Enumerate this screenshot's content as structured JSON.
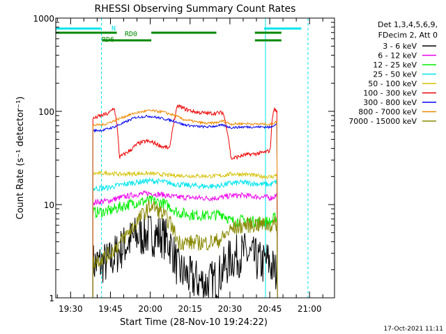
{
  "chart_data": {
    "type": "line",
    "title": "RHESSI Observing Summary Count Rates",
    "xlabel": "Start Time (28-Nov-10 19:24:22)",
    "ylabel": "Count Rate (s⁻¹ detector⁻¹)",
    "x_unit": "minutes after 19:24:22",
    "xlim": [
      0,
      105
    ],
    "ylim": [
      1,
      1000
    ],
    "yscale": "log",
    "x_ticks": [
      {
        "value": 5.6,
        "label": "19:30"
      },
      {
        "value": 20.6,
        "label": "19:45"
      },
      {
        "value": 35.6,
        "label": "20:00"
      },
      {
        "value": 50.6,
        "label": "20:15"
      },
      {
        "value": 65.6,
        "label": "20:30"
      },
      {
        "value": 80.6,
        "label": "20:45"
      },
      {
        "value": 95.6,
        "label": "21:00"
      }
    ],
    "y_ticks": [
      {
        "value": 1,
        "label": "1"
      },
      {
        "value": 10,
        "label": "10"
      },
      {
        "value": 100,
        "label": "100"
      },
      {
        "value": 1000,
        "label": "1000"
      }
    ],
    "legend_header": [
      "Det 1,3,4,5,6,9,",
      "FDecim 2, Att 0"
    ],
    "legend_placement": "right",
    "flags": [
      {
        "label": "N",
        "segments": [
          [
            0,
            17
          ],
          [
            78.5,
            92.5
          ]
        ],
        "level": 0,
        "color": "#00e5ee"
      },
      {
        "label": "RD0",
        "segments": [
          [
            0,
            23
          ],
          [
            36,
            60.5
          ],
          [
            75,
            85
          ]
        ],
        "level": 1,
        "color": "#008800"
      },
      {
        "label": "RD6",
        "segments": [
          [
            17.5,
            36
          ],
          [
            75,
            85
          ]
        ],
        "level": 2,
        "color": "#008800"
      }
    ],
    "vlines": [
      {
        "x": 0,
        "style": "solid",
        "color": "#00e5ee"
      },
      {
        "x": 17.2,
        "style": "dashed",
        "color": "#00e5ee"
      },
      {
        "x": 79.0,
        "style": "solid",
        "color": "#00e5ee"
      },
      {
        "x": 95.0,
        "style": "dashed",
        "color": "#00e5ee"
      }
    ],
    "series": [
      {
        "name": "3 - 6 keV",
        "color": "#000000",
        "points": [
          [
            14,
            2.3
          ],
          [
            20,
            2.4
          ],
          [
            24,
            3.2
          ],
          [
            30,
            4.5
          ],
          [
            35,
            4.8
          ],
          [
            40,
            4.6
          ],
          [
            43,
            3.8
          ],
          [
            46,
            2.0
          ],
          [
            51,
            1.6
          ],
          [
            57,
            1.4
          ],
          [
            61,
            1.6
          ],
          [
            63,
            2.0
          ],
          [
            66,
            2.6
          ],
          [
            71,
            3.0
          ],
          [
            75,
            2.6
          ],
          [
            78,
            2.3
          ],
          [
            79.5,
            2.5
          ],
          [
            80.8,
            2.3
          ],
          [
            82,
            2.0
          ],
          [
            83.5,
            1.8
          ]
        ]
      },
      {
        "name": "6 - 12 keV",
        "color": "#ee00ee",
        "points": [
          [
            14,
            10.5
          ],
          [
            20,
            11.0
          ],
          [
            24,
            11.8
          ],
          [
            30,
            12.8
          ],
          [
            35,
            13.2
          ],
          [
            40,
            12.8
          ],
          [
            43,
            12.3
          ],
          [
            46,
            12.0
          ],
          [
            51,
            11.9
          ],
          [
            57,
            11.7
          ],
          [
            61,
            11.8
          ],
          [
            63,
            12.0
          ],
          [
            66,
            12.5
          ],
          [
            71,
            12.5
          ],
          [
            75,
            12.2
          ],
          [
            78,
            12.0
          ],
          [
            79.5,
            12.0
          ],
          [
            80.8,
            11.8
          ],
          [
            82,
            12.0
          ],
          [
            83.5,
            13.0
          ]
        ]
      },
      {
        "name": "12 - 25 keV",
        "color": "#00ee00",
        "points": [
          [
            14,
            8.2
          ],
          [
            20,
            8.5
          ],
          [
            24,
            9.4
          ],
          [
            30,
            10.5
          ],
          [
            35,
            11.0
          ],
          [
            40,
            10.5
          ],
          [
            43,
            9.5
          ],
          [
            46,
            8.2
          ],
          [
            51,
            7.8
          ],
          [
            57,
            7.6
          ],
          [
            61,
            7.8
          ],
          [
            63,
            8.0
          ],
          [
            66,
            6.6
          ],
          [
            71,
            6.8
          ],
          [
            75,
            6.6
          ],
          [
            78,
            6.5
          ],
          [
            79.5,
            6.6
          ],
          [
            80.8,
            6.4
          ],
          [
            82,
            7.0
          ],
          [
            83.5,
            7.5
          ]
        ]
      },
      {
        "name": "25 - 50 keV",
        "color": "#00e5ee",
        "points": [
          [
            14,
            14.8
          ],
          [
            20,
            15.2
          ],
          [
            24,
            16.2
          ],
          [
            30,
            17.3
          ],
          [
            35,
            18.0
          ],
          [
            40,
            17.6
          ],
          [
            43,
            17.0
          ],
          [
            46,
            16.4
          ],
          [
            51,
            16.0
          ],
          [
            57,
            15.7
          ],
          [
            61,
            15.8
          ],
          [
            63,
            16.2
          ],
          [
            66,
            17.0
          ],
          [
            71,
            17.2
          ],
          [
            75,
            16.8
          ],
          [
            78,
            16.5
          ],
          [
            79.5,
            16.5
          ],
          [
            80.8,
            16.3
          ],
          [
            82,
            17.0
          ],
          [
            83.5,
            18.0
          ]
        ]
      },
      {
        "name": "50 - 100 keV",
        "color": "#d4c000",
        "points": [
          [
            14,
            21.5
          ],
          [
            20,
            21.8
          ],
          [
            24,
            21.2
          ],
          [
            30,
            21.4
          ],
          [
            35,
            21.6
          ],
          [
            40,
            21.0
          ],
          [
            43,
            20.6
          ],
          [
            46,
            20.5
          ],
          [
            51,
            20.3
          ],
          [
            57,
            20.2
          ],
          [
            61,
            20.3
          ],
          [
            63,
            20.5
          ],
          [
            66,
            21.3
          ],
          [
            71,
            21.2
          ],
          [
            75,
            20.5
          ],
          [
            78,
            20.0
          ],
          [
            79.5,
            20.0
          ],
          [
            80.8,
            19.8
          ],
          [
            82,
            20.0
          ],
          [
            83.5,
            21.0
          ]
        ]
      },
      {
        "name": "100 - 300 keV",
        "color": "#ee0000",
        "points": [
          [
            14,
            83
          ],
          [
            16,
            88
          ],
          [
            20,
            95
          ],
          [
            22,
            110
          ],
          [
            24,
            32
          ],
          [
            28,
            38
          ],
          [
            31,
            45
          ],
          [
            34,
            48
          ],
          [
            37,
            46
          ],
          [
            40,
            42
          ],
          [
            43,
            40
          ],
          [
            46,
            115
          ],
          [
            49,
            105
          ],
          [
            53,
            98
          ],
          [
            57,
            95
          ],
          [
            61,
            96
          ],
          [
            63,
            97
          ],
          [
            66,
            31
          ],
          [
            71,
            34
          ],
          [
            75,
            35
          ],
          [
            78,
            36
          ],
          [
            79.5,
            37
          ],
          [
            80.8,
            38
          ],
          [
            82,
            105
          ],
          [
            83.5,
            100
          ]
        ]
      },
      {
        "name": "300 - 800 keV",
        "color": "#0000ee",
        "points": [
          [
            14,
            62
          ],
          [
            18,
            63
          ],
          [
            22,
            68
          ],
          [
            26,
            76
          ],
          [
            30,
            86
          ],
          [
            35,
            89
          ],
          [
            40,
            84
          ],
          [
            45,
            78
          ],
          [
            48,
            72
          ],
          [
            53,
            69
          ],
          [
            57,
            68
          ],
          [
            61,
            70
          ],
          [
            63,
            71
          ],
          [
            66,
            67
          ],
          [
            71,
            68
          ],
          [
            75,
            68
          ],
          [
            78,
            68
          ],
          [
            79.5,
            68
          ],
          [
            80.8,
            67
          ],
          [
            82,
            71
          ],
          [
            83.5,
            74
          ]
        ]
      },
      {
        "name": "800 - 7000 keV",
        "color": "#ee8800",
        "points": [
          [
            14,
            71
          ],
          [
            18,
            72
          ],
          [
            22,
            79
          ],
          [
            26,
            88
          ],
          [
            30,
            96
          ],
          [
            35,
            102
          ],
          [
            40,
            99
          ],
          [
            45,
            90
          ],
          [
            48,
            82
          ],
          [
            53,
            77
          ],
          [
            57,
            74
          ],
          [
            61,
            76
          ],
          [
            63,
            79
          ],
          [
            66,
            73
          ],
          [
            71,
            74
          ],
          [
            75,
            73
          ],
          [
            78,
            73
          ],
          [
            79.5,
            73
          ],
          [
            80.8,
            72
          ],
          [
            82,
            75
          ],
          [
            83.5,
            78
          ]
        ]
      },
      {
        "name": "7000 - 15000 keV",
        "color": "#888800",
        "points": [
          [
            14,
            2.4
          ],
          [
            20,
            2.9
          ],
          [
            24,
            3.8
          ],
          [
            28,
            5.2
          ],
          [
            31,
            6.8
          ],
          [
            34,
            8.5
          ],
          [
            36,
            9.8
          ],
          [
            38,
            8.9
          ],
          [
            40,
            8.0
          ],
          [
            43,
            6.4
          ],
          [
            46,
            4.0
          ],
          [
            51,
            3.9
          ],
          [
            57,
            3.9
          ],
          [
            61,
            4.1
          ],
          [
            63,
            4.4
          ],
          [
            66,
            5.4
          ],
          [
            71,
            6.0
          ],
          [
            75,
            6.1
          ],
          [
            78,
            6.1
          ],
          [
            79.5,
            6.0
          ],
          [
            80.8,
            6.0
          ],
          [
            82,
            6.1
          ],
          [
            83.5,
            6.3
          ]
        ]
      }
    ]
  },
  "footer": {
    "timestamp": "17-Oct-2021 11:11"
  }
}
